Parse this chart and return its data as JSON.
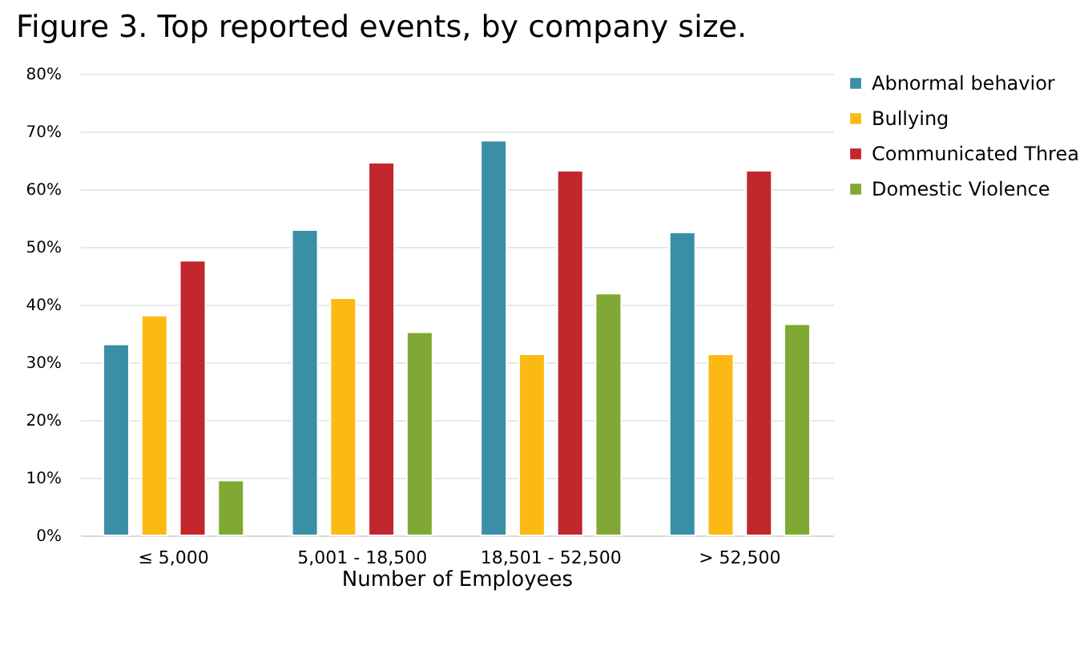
{
  "chart_data": {
    "type": "bar",
    "title": "Figure 3. Top reported events, by company size.",
    "xlabel": "Number of Employees",
    "categories": [
      "≤ 5,000",
      "5,001 -  18,500",
      "18,501 - 52,500",
      "> 52,500"
    ],
    "series": [
      {
        "name": "Abnormal behavior",
        "color": "#3a8fa6",
        "values": [
          33.1,
          52.9,
          68.4,
          52.5
        ]
      },
      {
        "name": "Bullying",
        "color": "#fdb913",
        "values": [
          38.1,
          41.1,
          31.4,
          31.4
        ]
      },
      {
        "name": "Communicated Threa",
        "color": "#c1272d",
        "values": [
          47.6,
          64.6,
          63.2,
          63.2
        ]
      },
      {
        "name": "Domestic Violence",
        "color": "#80a933",
        "values": [
          9.5,
          35.2,
          41.9,
          36.6
        ]
      }
    ],
    "ylim": [
      0,
      80
    ],
    "yticks": [
      {
        "value": 0,
        "label": "0%"
      },
      {
        "value": 10,
        "label": "10%"
      },
      {
        "value": 20,
        "label": "20%"
      },
      {
        "value": 30,
        "label": "30%"
      },
      {
        "value": 40,
        "label": "40%"
      },
      {
        "value": 50,
        "label": "50%"
      },
      {
        "value": 60,
        "label": "60%"
      },
      {
        "value": 70,
        "label": "70%"
      },
      {
        "value": 80,
        "label": "80%"
      }
    ],
    "grid": "y",
    "legend": "right"
  }
}
